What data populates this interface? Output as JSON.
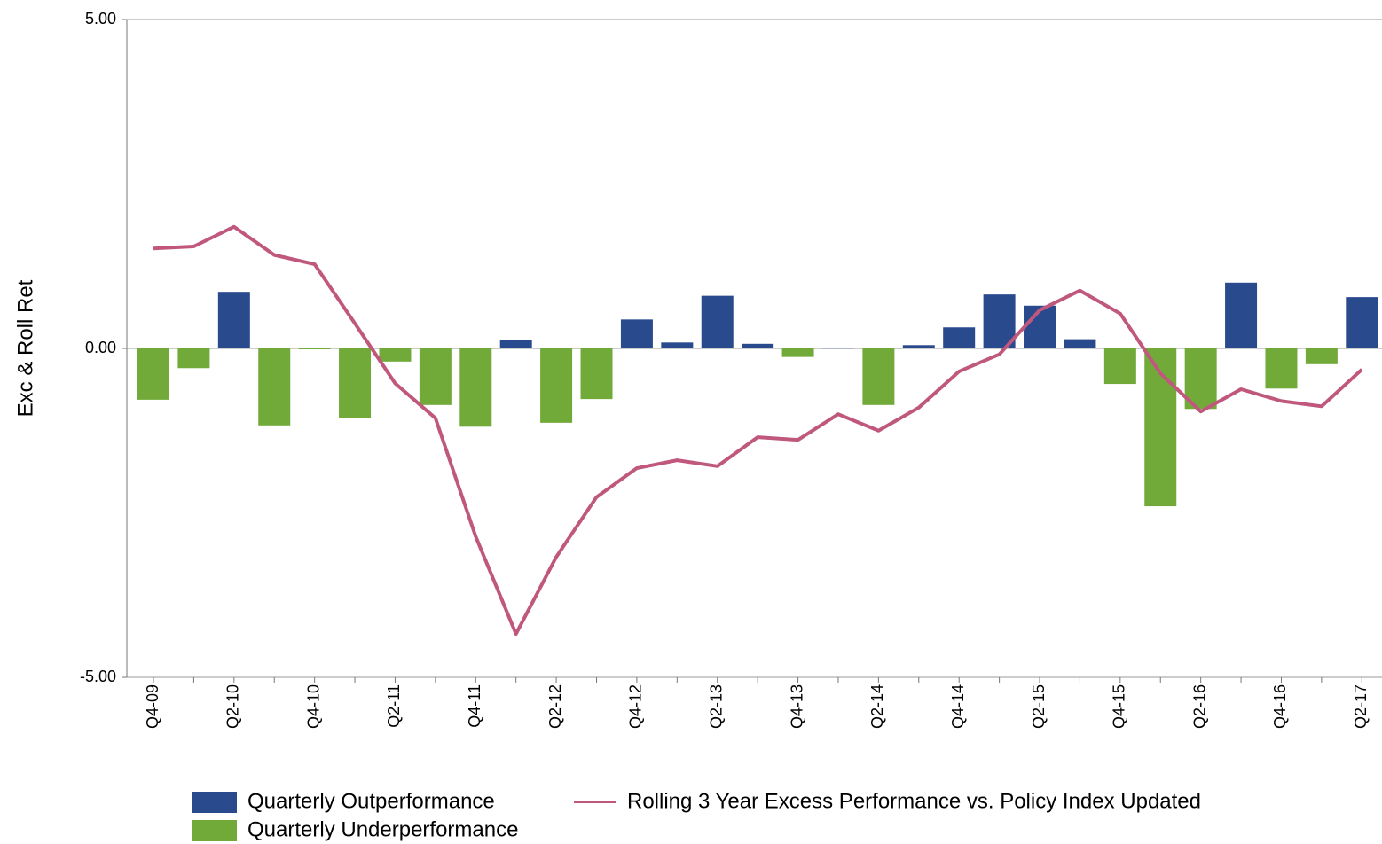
{
  "chart_data": {
    "type": "bar",
    "y_label": "Exc & Roll Ret",
    "categories": [
      "Q4-09",
      null,
      "Q2-10",
      null,
      "Q4-10",
      null,
      "Q2-11",
      null,
      "Q4-11",
      null,
      "Q2-12",
      null,
      "Q4-12",
      null,
      "Q2-13",
      null,
      "Q4-13",
      null,
      "Q2-14",
      null,
      "Q4-14",
      null,
      "Q2-15",
      null,
      "Q4-15",
      null,
      "Q2-16",
      null,
      "Q4-16",
      null,
      "Q2-17"
    ],
    "series": [
      {
        "name": "Quarterly Outperformance",
        "type": "bar",
        "color": "#2a4a8e",
        "values": [
          null,
          null,
          0.86,
          null,
          null,
          null,
          null,
          null,
          null,
          0.13,
          null,
          null,
          0.44,
          0.09,
          0.8,
          0.07,
          null,
          0.01,
          null,
          0.05,
          0.32,
          0.82,
          0.65,
          0.14,
          null,
          null,
          null,
          1.0,
          null,
          null,
          0.78
        ]
      },
      {
        "name": "Quarterly Underperformance",
        "type": "bar",
        "color": "#72aa3a",
        "values": [
          -0.78,
          -0.3,
          null,
          -1.17,
          -0.01,
          -1.06,
          -0.2,
          -0.86,
          -1.19,
          null,
          -1.13,
          -0.77,
          null,
          null,
          null,
          null,
          -0.13,
          null,
          -0.86,
          null,
          null,
          null,
          null,
          null,
          -0.54,
          -2.4,
          -0.92,
          null,
          -0.61,
          -0.24,
          null
        ]
      },
      {
        "name": "Rolling 3 Year Excess Performance vs. Policy Index Updated",
        "type": "line",
        "color": "#c0587e",
        "values": [
          1.52,
          1.55,
          1.85,
          1.42,
          1.28,
          0.38,
          -0.53,
          -1.06,
          -2.86,
          -4.34,
          -3.17,
          -2.26,
          -1.82,
          -1.7,
          -1.79,
          -1.35,
          -1.39,
          -1.0,
          -1.25,
          -0.9,
          -0.35,
          -0.09,
          0.58,
          0.88,
          0.53,
          -0.38,
          -0.96,
          -0.62,
          -0.8,
          -0.88,
          -0.32
        ]
      }
    ],
    "ylim": [
      -5,
      5
    ],
    "yticks": [
      {
        "value": -5,
        "label": "-5.00"
      },
      {
        "value": 0,
        "label": "0.00"
      },
      {
        "value": 5,
        "label": "5.00"
      }
    ],
    "grid": true
  }
}
